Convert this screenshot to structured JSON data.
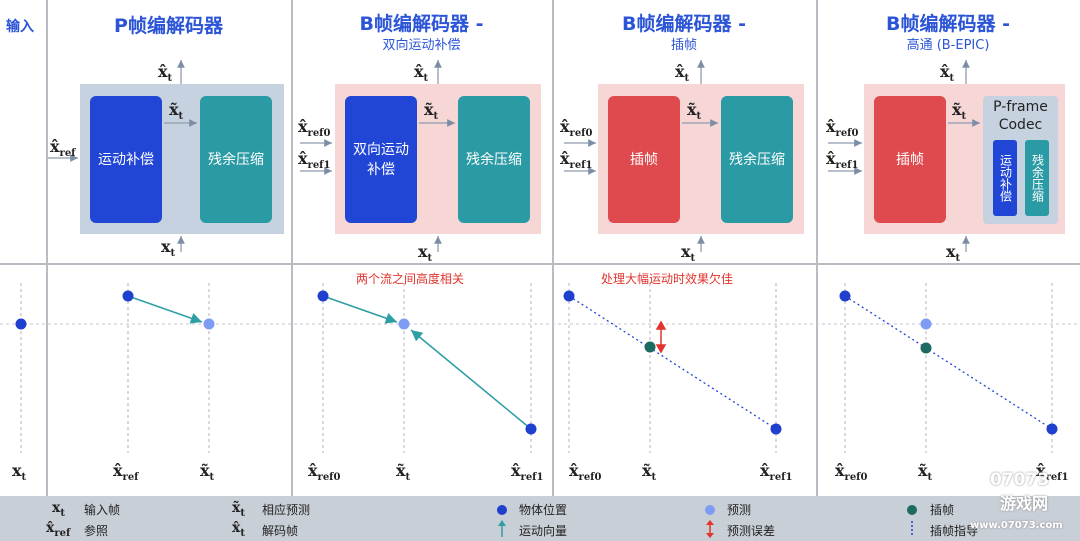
{
  "header": {
    "input_label": "输入"
  },
  "columns": [
    {
      "title": "P帧编解码器",
      "subtitle": ""
    },
    {
      "title": "B帧编解码器 -",
      "subtitle": "双向运动补偿"
    },
    {
      "title": "B帧编解码器 -",
      "subtitle": "插帧"
    },
    {
      "title": "B帧编解码器 -",
      "subtitle": "高通 (B-EPIC)"
    }
  ],
  "blocks": {
    "motion_comp": "运动补偿",
    "residual": "残余压缩",
    "bidir_line1": "双向运动",
    "bidir_line2": "补偿",
    "interp": "插帧",
    "pframe_line1": "P-frame",
    "pframe_line2": "Codec",
    "mc_vertical": "运动补偿",
    "res_vertical": "残余压缩"
  },
  "symbols": {
    "x_hat": "x̂",
    "x_tilde": "x̃",
    "x": "x",
    "t": "t",
    "ref": "ref",
    "ref0": "ref0",
    "ref1": "ref1"
  },
  "annotations": {
    "col2": "两个流之间高度相关",
    "col3": "处理大幅运动时效果欠佳"
  },
  "legend": {
    "input_frame": "输入帧",
    "reference": "参照",
    "prediction_corr": "相应预测",
    "decoded_frame": "解码帧",
    "object_pos": "物体位置",
    "motion_vector": "运动向量",
    "prediction": "预测",
    "pred_error": "预测误差",
    "interp": "插帧",
    "interp_guide": "插帧指导"
  },
  "watermark": {
    "brand": "07073",
    "site_cn": "游戏网",
    "site_url": "www.07073.com"
  },
  "colors": {
    "blue_block": "#2146d6",
    "teal_block": "#2a9aa5",
    "red_block": "#df4a4e",
    "point_dark_blue": "#1f3fcf",
    "point_light_blue": "#7f9cf5",
    "point_teal": "#1b6b61",
    "arrow_teal": "#2f9fa6",
    "error_red": "#e0342c"
  }
}
